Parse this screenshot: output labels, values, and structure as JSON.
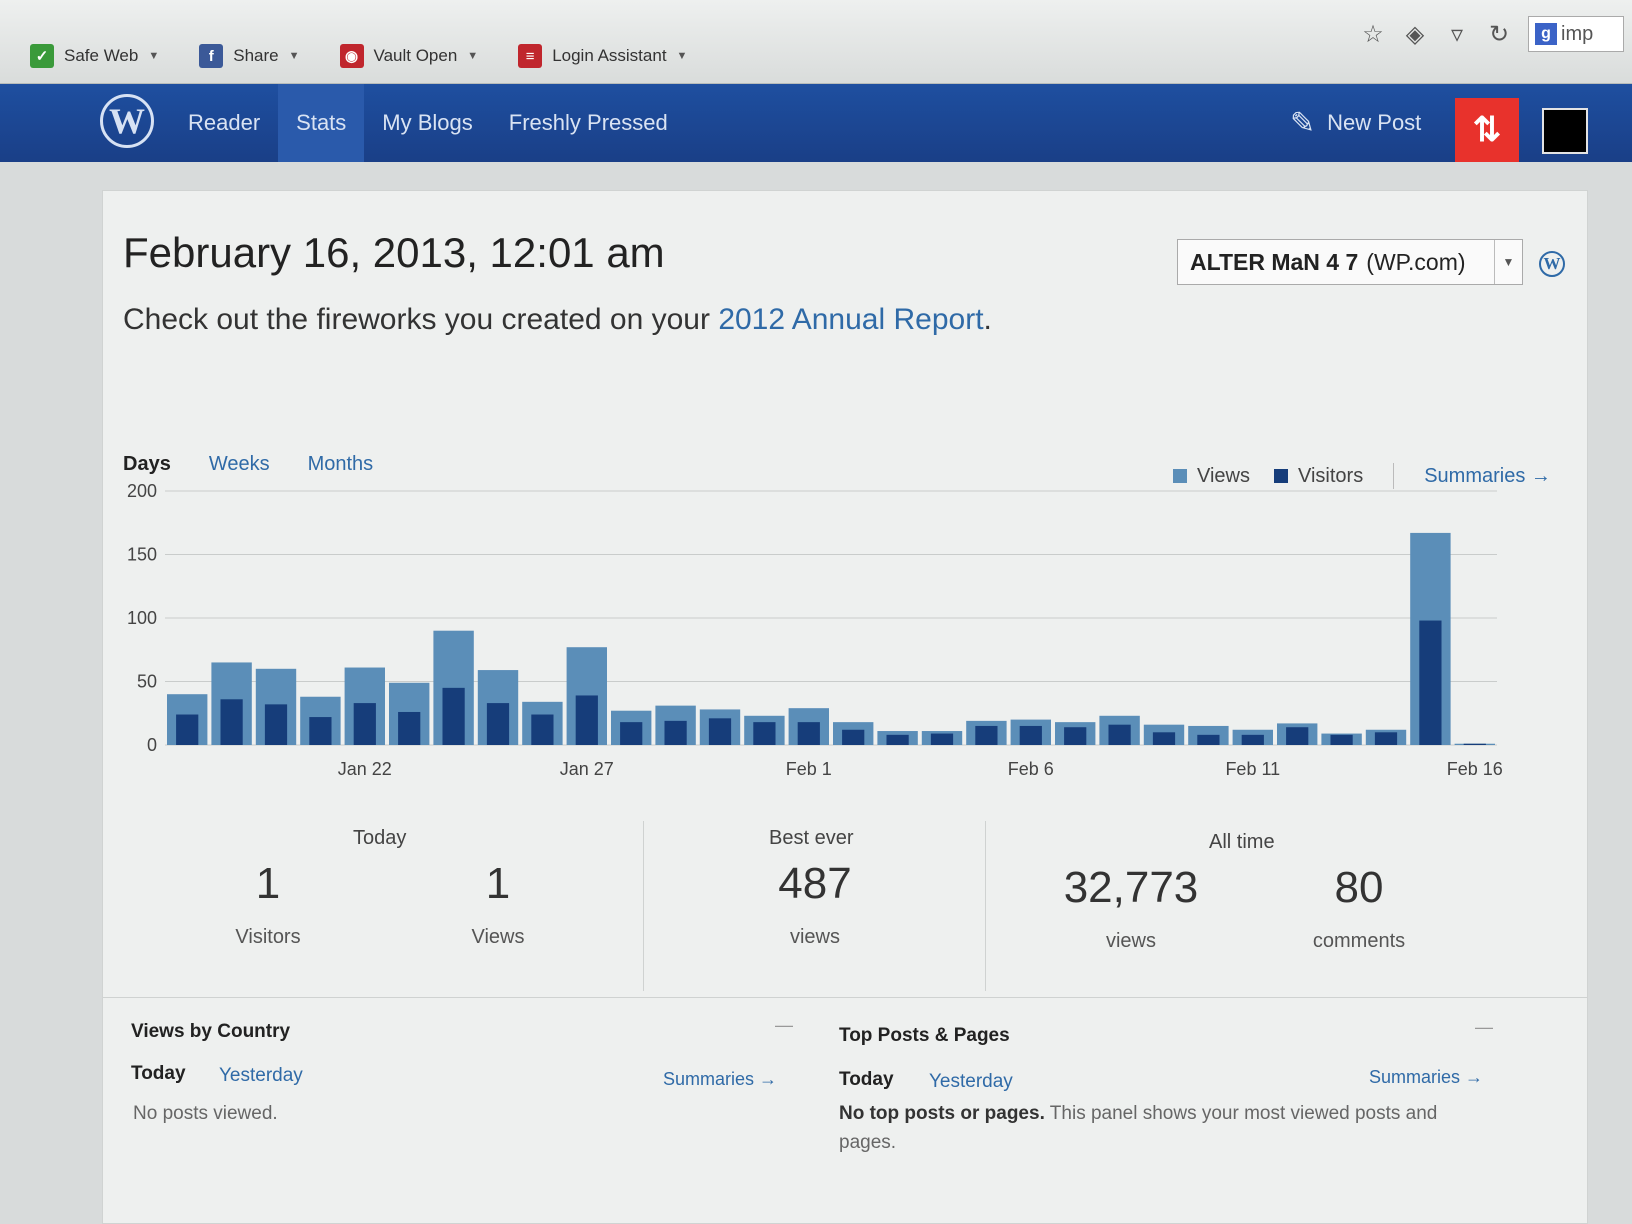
{
  "browser": {
    "bookmarks": [
      {
        "label": "Safe Web",
        "icon": "safe-web-icon",
        "color": "#3a9a3a",
        "glyph": "✓"
      },
      {
        "label": "Share",
        "icon": "facebook-icon",
        "color": "#3b5998",
        "glyph": "f"
      },
      {
        "label": "Vault Open",
        "icon": "vault-icon",
        "color": "#c0262d",
        "glyph": "◉"
      },
      {
        "label": "Login Assistant",
        "icon": "login-assistant-icon",
        "color": "#c0262d",
        "glyph": "≡"
      }
    ],
    "search_text": "imp"
  },
  "nav": {
    "items": [
      {
        "label": "Reader",
        "active": false
      },
      {
        "label": "Stats",
        "active": true
      },
      {
        "label": "My Blogs",
        "active": false
      },
      {
        "label": "Freshly Pressed",
        "active": false
      }
    ],
    "new_post": "New Post"
  },
  "header": {
    "title": "February 16, 2013, 12:01 am",
    "promo_text": "Check out the fireworks you created on your ",
    "promo_link": "2012 Annual Report",
    "promo_end": ".",
    "blog_name": "ALTER MaN 4 7",
    "blog_suffix": "(WP.com)"
  },
  "period_tabs": [
    "Days",
    "Weeks",
    "Months"
  ],
  "legend": {
    "views": "Views",
    "visitors": "Visitors",
    "summaries": "Summaries →"
  },
  "colors": {
    "views": "#5b8eb8",
    "visitors": "#163d7a",
    "link": "#2f6aa7",
    "wpbar": "#1e4fa0",
    "notif": "#e8322c"
  },
  "chart_data": {
    "type": "bar",
    "ylim": [
      0,
      200
    ],
    "yticks": [
      0,
      50,
      100,
      150,
      200
    ],
    "xtick_labels": [
      "Jan 22",
      "Jan 27",
      "Feb 1",
      "Feb 6",
      "Feb 11",
      "Feb 16"
    ],
    "xtick_indices": [
      4,
      9,
      14,
      19,
      24,
      29
    ],
    "series": [
      {
        "name": "Views",
        "values": [
          40,
          65,
          60,
          38,
          61,
          49,
          90,
          59,
          34,
          77,
          27,
          31,
          28,
          23,
          29,
          18,
          11,
          11,
          19,
          20,
          18,
          23,
          16,
          15,
          12,
          17,
          9,
          12,
          167,
          1
        ]
      },
      {
        "name": "Visitors",
        "values": [
          24,
          36,
          32,
          22,
          33,
          26,
          45,
          33,
          24,
          39,
          18,
          19,
          21,
          18,
          18,
          12,
          8,
          9,
          15,
          15,
          14,
          16,
          10,
          8,
          8,
          14,
          8,
          10,
          98,
          1
        ]
      }
    ]
  },
  "stats": {
    "today": {
      "label": "Today",
      "visitors": "1",
      "visitors_label": "Visitors",
      "views": "1",
      "views_label": "Views"
    },
    "best": {
      "label": "Best ever",
      "views": "487",
      "views_label": "views"
    },
    "all_time": {
      "label": "All time",
      "views": "32,773",
      "views_label": "views",
      "comments": "80",
      "comments_label": "comments"
    }
  },
  "panels": {
    "country": {
      "title": "Views by Country",
      "tab_today": "Today",
      "tab_yesterday": "Yesterday",
      "summaries": "Summaries →",
      "minimize": "—",
      "message": "No posts viewed."
    },
    "top_posts": {
      "title": "Top Posts & Pages",
      "tab_today": "Today",
      "tab_yesterday": "Yesterday",
      "summaries": "Summaries →",
      "minimize": "—",
      "message_bold": "No top posts or pages.",
      "message": " This panel shows your most viewed posts and pages."
    }
  }
}
